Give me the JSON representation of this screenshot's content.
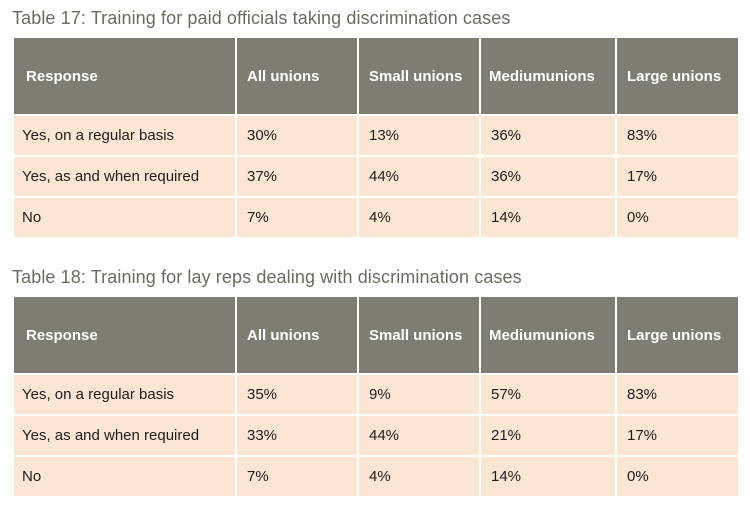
{
  "tables": [
    {
      "caption": "Table 17: Training for paid officials taking discrimination cases",
      "headers": [
        "Response",
        "All unions",
        "Small unions",
        "Mediumunions",
        "Large unions"
      ],
      "rows": [
        [
          "Yes, on a regular basis",
          "30%",
          "13%",
          "36%",
          "83%"
        ],
        [
          "Yes, as and when required",
          "37%",
          "44%",
          "36%",
          "17%"
        ],
        [
          "No",
          "7%",
          "4%",
          "14%",
          "0%"
        ]
      ]
    },
    {
      "caption": "Table 18: Training for lay reps dealing with discrimination cases",
      "headers": [
        "Response",
        "All unions",
        "Small unions",
        "Mediumunions",
        "Large unions"
      ],
      "rows": [
        [
          "Yes, on a regular basis",
          "35%",
          "9%",
          "57%",
          "83%"
        ],
        [
          "Yes, as and when required",
          "33%",
          "44%",
          "21%",
          "17%"
        ],
        [
          "No",
          "7%",
          "4%",
          "14%",
          "0%"
        ]
      ]
    }
  ],
  "colors": {
    "header_bg": "#7f7c71",
    "row_bg": "#fbe5d3",
    "caption_text": "#6b6b62"
  }
}
